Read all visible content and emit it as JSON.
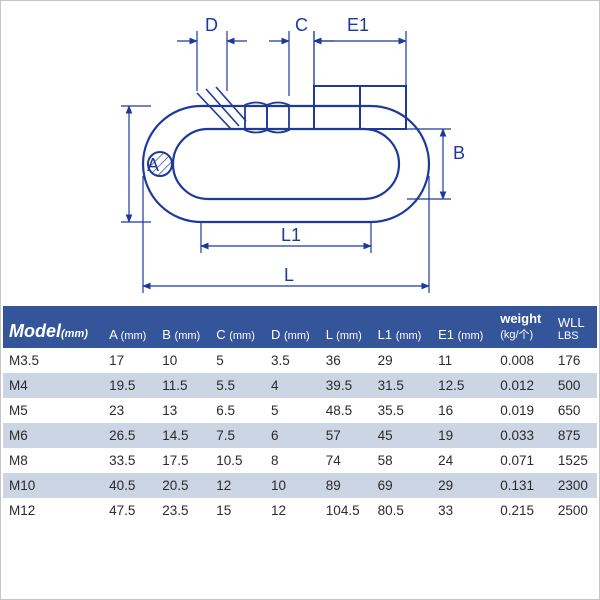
{
  "diagram": {
    "stroke_color": "#1d3a9a",
    "stroke_width": 2.2,
    "thin_width": 1.2,
    "labels": {
      "A": "A",
      "B": "B",
      "C": "C",
      "D": "D",
      "E1": "E1",
      "L": "L",
      "L1": "L1"
    }
  },
  "table": {
    "header_bg": "#35559b",
    "header_fg": "#ffffff",
    "row_alt_bg": "#cbd5e3",
    "row_bg": "#ffffff",
    "text_color": "#2b2b2b",
    "font_size": 13.5,
    "columns": [
      {
        "key": "model",
        "main": "Model",
        "sub": "(mm)",
        "style": "first"
      },
      {
        "key": "A",
        "main": "A ",
        "sub": "(mm)"
      },
      {
        "key": "B",
        "main": "B ",
        "sub": "(mm)"
      },
      {
        "key": "C",
        "main": "C ",
        "sub": "(mm)"
      },
      {
        "key": "D",
        "main": "D ",
        "sub": "(mm)"
      },
      {
        "key": "L",
        "main": "L ",
        "sub": "(mm)"
      },
      {
        "key": "L1",
        "main": "L1 ",
        "sub": "(mm)"
      },
      {
        "key": "E1",
        "main": "E1 ",
        "sub": "(mm)"
      },
      {
        "key": "weight",
        "main": "weight",
        "sub": "(kg/个)",
        "stack": true,
        "boldmain": true
      },
      {
        "key": "wll",
        "main": "WLL",
        "sub": "LBS",
        "stack": true
      }
    ],
    "rows": [
      {
        "model": "M3.5",
        "A": "17",
        "B": "10",
        "C": "5",
        "D": "3.5",
        "L": "36",
        "L1": "29",
        "E1": "11",
        "weight": "0.008",
        "wll": "176"
      },
      {
        "model": "M4",
        "A": "19.5",
        "B": "11.5",
        "C": "5.5",
        "D": "4",
        "L": "39.5",
        "L1": "31.5",
        "E1": "12.5",
        "weight": "0.012",
        "wll": "500"
      },
      {
        "model": "M5",
        "A": "23",
        "B": "13",
        "C": "6.5",
        "D": "5",
        "L": "48.5",
        "L1": "35.5",
        "E1": "16",
        "weight": "0.019",
        "wll": "650"
      },
      {
        "model": "M6",
        "A": "26.5",
        "B": "14.5",
        "C": "7.5",
        "D": "6",
        "L": "57",
        "L1": "45",
        "E1": "19",
        "weight": "0.033",
        "wll": "875"
      },
      {
        "model": "M8",
        "A": "33.5",
        "B": "17.5",
        "C": "10.5",
        "D": "8",
        "L": "74",
        "L1": "58",
        "E1": "24",
        "weight": "0.071",
        "wll": "1525"
      },
      {
        "model": "M10",
        "A": "40.5",
        "B": "20.5",
        "C": "12",
        "D": "10",
        "L": "89",
        "L1": "69",
        "E1": "29",
        "weight": "0.131",
        "wll": "2300"
      },
      {
        "model": "M12",
        "A": "47.5",
        "B": "23.5",
        "C": "15",
        "D": "12",
        "L": "104.5",
        "L1": "80.5",
        "E1": "33",
        "weight": "0.215",
        "wll": "2500"
      }
    ]
  }
}
